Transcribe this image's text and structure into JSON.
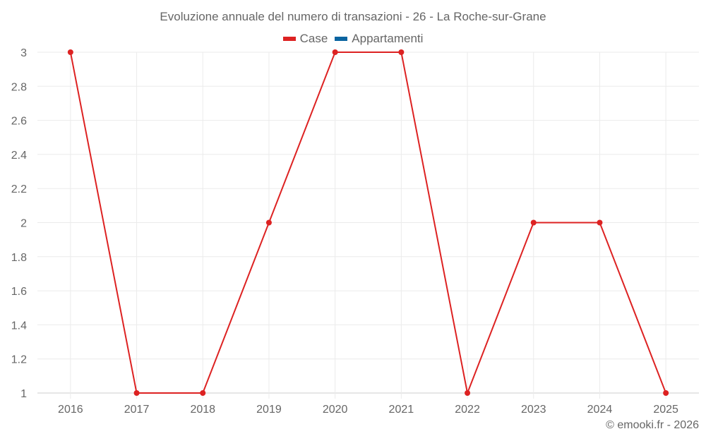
{
  "title": "Evoluzione annuale del numero di transazioni - 26 - La Roche-sur-Grane",
  "legend": [
    {
      "label": "Case",
      "color": "#dd2222"
    },
    {
      "label": "Appartamenti",
      "color": "#0a64a0"
    }
  ],
  "credit": "© emooki.fr - 2026",
  "chart_data": {
    "type": "line",
    "title": "Evoluzione annuale del numero di transazioni - 26 - La Roche-sur-Grane",
    "xlabel": "",
    "ylabel": "",
    "categories": [
      "2016",
      "2017",
      "2018",
      "2019",
      "2020",
      "2021",
      "2022",
      "2023",
      "2024",
      "2025"
    ],
    "series": [
      {
        "name": "Case",
        "color": "#dd2222",
        "values": [
          3,
          1,
          1,
          2,
          3,
          3,
          1,
          2,
          2,
          1
        ]
      },
      {
        "name": "Appartamenti",
        "color": "#0a64a0",
        "values": []
      }
    ],
    "ylim": [
      1,
      3
    ],
    "yticks": [
      "1",
      "1.2",
      "1.4",
      "1.6",
      "1.8",
      "2",
      "2.2",
      "2.4",
      "2.6",
      "2.8",
      "3"
    ],
    "grid": true,
    "legend_position": "top"
  }
}
